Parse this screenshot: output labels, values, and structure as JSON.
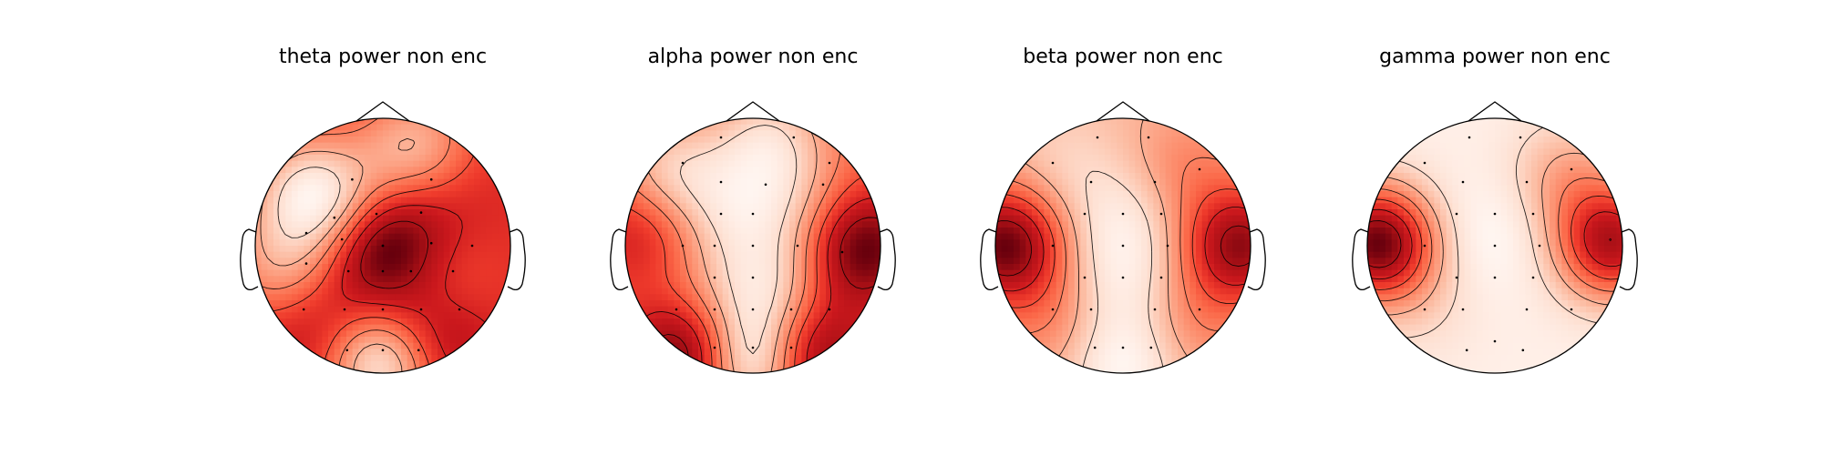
{
  "chart_data": [
    {
      "type": "heatmap",
      "subtype": "eeg-topomap",
      "title": "theta power non enc",
      "colormap": "Reds",
      "contours": true,
      "blobs": [
        {
          "x": -0.58,
          "y": 0.42,
          "v": -0.75
        },
        {
          "x": -0.8,
          "y": -0.15,
          "v": -0.45
        },
        {
          "x": -0.2,
          "y": 0.24,
          "v": -0.35
        },
        {
          "x": 0.25,
          "y": 0.78,
          "v": -0.55
        },
        {
          "x": 0.0,
          "y": 0.0,
          "v": 0.85
        },
        {
          "x": 0.0,
          "y": -0.45,
          "v": 0.5
        },
        {
          "x": 0.35,
          "y": -0.75,
          "v": 0.45
        },
        {
          "x": -0.5,
          "y": -0.7,
          "v": 0.25
        },
        {
          "x": 0.0,
          "y": -0.88,
          "v": -1.05
        },
        {
          "x": 0.0,
          "y": -0.32,
          "v": -0.45
        },
        {
          "x": 0.45,
          "y": -0.3,
          "v": -0.2
        },
        {
          "x": 0.5,
          "y": 0.4,
          "v": 0.1
        }
      ],
      "baseline": 0.52,
      "sensors": [
        [
          0.0,
          0.0
        ],
        [
          -0.24,
          0.52
        ],
        [
          0.38,
          0.52
        ],
        [
          -0.38,
          0.22
        ],
        [
          -0.05,
          0.25
        ],
        [
          0.3,
          0.26
        ],
        [
          -0.6,
          0.1
        ],
        [
          -0.32,
          0.05
        ],
        [
          0.0,
          0.0
        ],
        [
          0.38,
          0.02
        ],
        [
          0.7,
          0.0
        ],
        [
          -0.6,
          -0.14
        ],
        [
          -0.27,
          -0.2
        ],
        [
          0.0,
          -0.2
        ],
        [
          0.22,
          -0.2
        ],
        [
          0.55,
          -0.2
        ],
        [
          -0.62,
          -0.5
        ],
        [
          -0.3,
          -0.5
        ],
        [
          0.0,
          -0.5
        ],
        [
          0.3,
          -0.5
        ],
        [
          0.6,
          -0.5
        ],
        [
          -0.28,
          -0.82
        ],
        [
          0.0,
          -0.82
        ],
        [
          0.28,
          -0.82
        ]
      ]
    },
    {
      "type": "heatmap",
      "subtype": "eeg-topomap",
      "title": "alpha power non enc",
      "colormap": "Reds",
      "contours": true,
      "blobs": [
        {
          "x": -0.65,
          "y": 0.55,
          "v": -0.65
        },
        {
          "x": 0.12,
          "y": 0.82,
          "v": -0.65
        },
        {
          "x": -0.15,
          "y": 0.25,
          "v": -0.5
        },
        {
          "x": 0.35,
          "y": 0.3,
          "v": -0.35
        },
        {
          "x": -0.85,
          "y": 0.12,
          "v": 0.5
        },
        {
          "x": 0.85,
          "y": -0.02,
          "v": 0.95
        },
        {
          "x": 0.2,
          "y": -0.3,
          "v": -0.45
        },
        {
          "x": -0.4,
          "y": -0.3,
          "v": -0.25
        },
        {
          "x": -0.52,
          "y": -0.85,
          "v": 1.0
        },
        {
          "x": 0.45,
          "y": -0.85,
          "v": 0.9
        },
        {
          "x": 0.0,
          "y": -0.9,
          "v": -1.1
        },
        {
          "x": 0.0,
          "y": -0.45,
          "v": -0.2
        }
      ],
      "baseline": 0.42,
      "sensors": [
        [
          -0.25,
          0.85
        ],
        [
          0.32,
          0.85
        ],
        [
          -0.55,
          0.65
        ],
        [
          0.6,
          0.65
        ],
        [
          -0.25,
          0.5
        ],
        [
          0.1,
          0.48
        ],
        [
          0.55,
          0.48
        ],
        [
          -0.25,
          0.25
        ],
        [
          0.0,
          0.25
        ],
        [
          -0.55,
          0.0
        ],
        [
          -0.3,
          0.0
        ],
        [
          0.0,
          0.0
        ],
        [
          0.35,
          0.0
        ],
        [
          0.7,
          -0.05
        ],
        [
          -0.3,
          -0.25
        ],
        [
          0.0,
          -0.25
        ],
        [
          -0.6,
          -0.5
        ],
        [
          -0.3,
          -0.5
        ],
        [
          0.0,
          -0.5
        ],
        [
          0.3,
          -0.5
        ],
        [
          0.6,
          -0.5
        ],
        [
          -0.3,
          -0.8
        ],
        [
          0.0,
          -0.8
        ],
        [
          0.3,
          -0.8
        ]
      ]
    },
    {
      "type": "heatmap",
      "subtype": "eeg-topomap",
      "title": "beta power non enc",
      "colormap": "Reds",
      "contours": true,
      "blobs": [
        {
          "x": -0.92,
          "y": 0.0,
          "v": 1.2
        },
        {
          "x": 0.92,
          "y": 0.0,
          "v": 1.05
        },
        {
          "x": 0.5,
          "y": 0.6,
          "v": 0.25
        },
        {
          "x": -0.55,
          "y": -0.6,
          "v": 0.25
        },
        {
          "x": 0.55,
          "y": -0.6,
          "v": 0.25
        },
        {
          "x": 0.0,
          "y": 0.2,
          "v": -0.3
        },
        {
          "x": 0.0,
          "y": -0.3,
          "v": -0.3
        },
        {
          "x": 0.0,
          "y": -0.95,
          "v": -0.45
        },
        {
          "x": -0.45,
          "y": 0.65,
          "v": -0.15
        }
      ],
      "baseline": 0.22,
      "sensors": [
        [
          -0.2,
          0.85
        ],
        [
          0.2,
          0.85
        ],
        [
          -0.55,
          0.65
        ],
        [
          0.6,
          0.6
        ],
        [
          -0.25,
          0.5
        ],
        [
          0.25,
          0.5
        ],
        [
          -0.3,
          0.25
        ],
        [
          0.0,
          0.25
        ],
        [
          0.3,
          0.25
        ],
        [
          -0.55,
          0.0
        ],
        [
          0.0,
          0.0
        ],
        [
          0.35,
          0.0
        ],
        [
          -0.3,
          -0.25
        ],
        [
          0.0,
          -0.25
        ],
        [
          0.3,
          -0.25
        ],
        [
          -0.55,
          -0.5
        ],
        [
          -0.25,
          -0.5
        ],
        [
          0.25,
          -0.5
        ],
        [
          0.6,
          -0.5
        ],
        [
          -0.22,
          -0.8
        ],
        [
          0.0,
          -0.8
        ],
        [
          0.22,
          -0.8
        ]
      ]
    },
    {
      "type": "heatmap",
      "subtype": "eeg-topomap",
      "title": "gamma power non enc",
      "colormap": "Reds",
      "contours": true,
      "blobs": [
        {
          "x": -0.92,
          "y": 0.02,
          "v": 1.15
        },
        {
          "x": 0.92,
          "y": 0.02,
          "v": 0.95
        },
        {
          "x": 0.55,
          "y": 0.55,
          "v": 0.3
        },
        {
          "x": -0.55,
          "y": -0.5,
          "v": 0.1
        },
        {
          "x": 0.0,
          "y": 0.1,
          "v": -0.1
        }
      ],
      "baseline": 0.12,
      "sensors": [
        [
          -0.2,
          0.85
        ],
        [
          0.2,
          0.85
        ],
        [
          -0.55,
          0.65
        ],
        [
          0.6,
          0.6
        ],
        [
          -0.25,
          0.5
        ],
        [
          0.25,
          0.5
        ],
        [
          -0.3,
          0.25
        ],
        [
          0.0,
          0.25
        ],
        [
          0.3,
          0.25
        ],
        [
          -0.55,
          0.0
        ],
        [
          0.0,
          0.0
        ],
        [
          0.35,
          0.0
        ],
        [
          -0.3,
          -0.25
        ],
        [
          0.0,
          -0.25
        ],
        [
          0.3,
          -0.25
        ],
        [
          -0.55,
          -0.5
        ],
        [
          -0.25,
          -0.5
        ],
        [
          0.25,
          -0.5
        ],
        [
          0.6,
          -0.5
        ],
        [
          0.0,
          -0.75
        ],
        [
          -0.22,
          -0.82
        ],
        [
          0.22,
          -0.82
        ]
      ]
    }
  ]
}
